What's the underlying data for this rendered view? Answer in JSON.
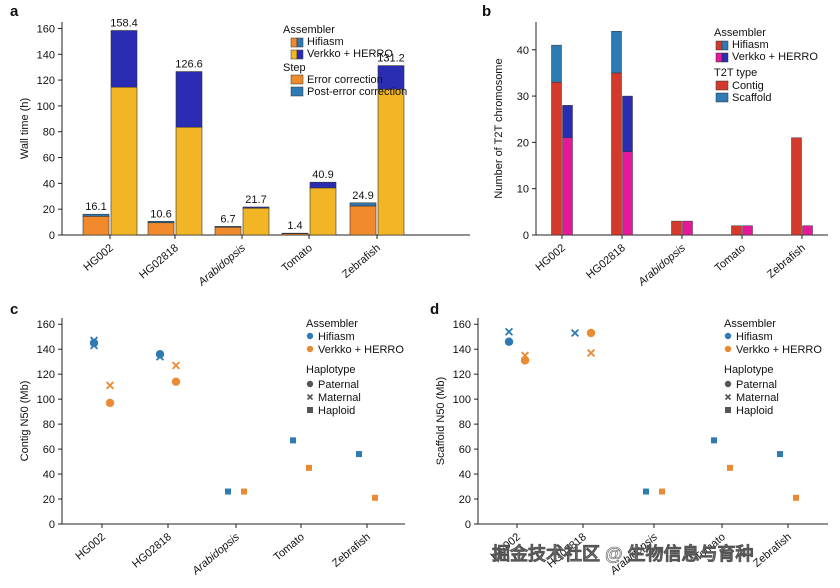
{
  "colors": {
    "hifiasm_orange": "#f08a2c",
    "verkko_yellow": "#f2b526",
    "post_blue": "#2e7bb4",
    "verkko_navy": "#2a2db3",
    "contig_red": "#d33a2c",
    "verkko_magenta": "#e5189a",
    "scatter_blue": "#2e7bb4",
    "scatter_orange": "#e98a35"
  },
  "chart_data": [
    {
      "panel": "a",
      "type": "bar",
      "categories": [
        "HG002",
        "HG02818",
        "Arabidopsis",
        "Tomato",
        "Zebrafish"
      ],
      "italic_categories": [
        "Arabidopsis"
      ],
      "ylabel": "Wall time (h)",
      "ylim": [
        0,
        165
      ],
      "yticks": [
        "0",
        "20",
        "40",
        "60",
        "80",
        "100",
        "120",
        "140",
        "160"
      ],
      "legend": {
        "title_assembler": "Assembler",
        "assembler": [
          "Hifiasm",
          "Verkko + HERRO"
        ],
        "title_step": "Step",
        "step": [
          "Error correction",
          "Post-error correction"
        ]
      },
      "series": [
        {
          "name": "Hifiasm",
          "error_correction": [
            14.5,
            9.5,
            6.0,
            1.0,
            22.5
          ],
          "post_error_correction": [
            1.6,
            1.1,
            0.7,
            0.4,
            2.4
          ],
          "totals": [
            "16.1",
            "10.6",
            "6.7",
            "1.4",
            "24.9"
          ]
        },
        {
          "name": "Verkko + HERRO",
          "error_correction": [
            114.5,
            83.5,
            20.8,
            36.5,
            113.0
          ],
          "post_error_correction": [
            43.9,
            43.1,
            0.9,
            4.4,
            18.2
          ],
          "totals": [
            "158.4",
            "126.6",
            "21.7",
            "40.9",
            "131.2"
          ]
        }
      ]
    },
    {
      "panel": "b",
      "type": "bar",
      "categories": [
        "HG002",
        "HG02818",
        "Arabidopsis",
        "Tomato",
        "Zebrafish"
      ],
      "italic_categories": [
        "Arabidopsis"
      ],
      "ylabel": "Number of T2T chromosome",
      "ylim": [
        0,
        46
      ],
      "yticks": [
        "0",
        "10",
        "20",
        "30",
        "40"
      ],
      "legend": {
        "title_assembler": "Assembler",
        "assembler": [
          "Hifiasm",
          "Verkko + HERRO"
        ],
        "title_type": "T2T type",
        "type": [
          "Contig",
          "Scaffold"
        ]
      },
      "series": [
        {
          "name": "Hifiasm",
          "contig": [
            33,
            35,
            3,
            2,
            21
          ],
          "scaffold": [
            8,
            9,
            0,
            0,
            0
          ]
        },
        {
          "name": "Verkko + HERRO",
          "contig": [
            21,
            18,
            3,
            2,
            2
          ],
          "scaffold": [
            7,
            12,
            0,
            0,
            0
          ]
        }
      ]
    },
    {
      "panel": "c",
      "type": "scatter",
      "categories": [
        "HG002",
        "HG02818",
        "Arabidopsis",
        "Tomato",
        "Zebrafish"
      ],
      "italic_categories": [
        "Arabidopsis"
      ],
      "ylabel": "Contig N50 (Mb)",
      "ylim": [
        0,
        165
      ],
      "yticks": [
        "0",
        "20",
        "40",
        "60",
        "80",
        "100",
        "120",
        "140",
        "160"
      ],
      "legend": {
        "title_assembler": "Assembler",
        "assembler": [
          "Hifiasm",
          "Verkko + HERRO"
        ],
        "title_haplotype": "Haplotype",
        "haplotype": [
          "Paternal",
          "Maternal",
          "Haploid"
        ]
      },
      "points": [
        {
          "cat": 0,
          "assembler": 0,
          "hap": "paternal",
          "y": 145
        },
        {
          "cat": 0,
          "assembler": 0,
          "hap": "maternal",
          "y": 147
        },
        {
          "cat": 0,
          "assembler": 0,
          "hap": "maternal",
          "y": 143
        },
        {
          "cat": 0,
          "assembler": 1,
          "hap": "maternal",
          "y": 111
        },
        {
          "cat": 0,
          "assembler": 1,
          "hap": "paternal",
          "y": 97
        },
        {
          "cat": 1,
          "assembler": 0,
          "hap": "paternal",
          "y": 136
        },
        {
          "cat": 1,
          "assembler": 0,
          "hap": "maternal",
          "y": 134
        },
        {
          "cat": 1,
          "assembler": 1,
          "hap": "maternal",
          "y": 127
        },
        {
          "cat": 1,
          "assembler": 1,
          "hap": "paternal",
          "y": 114
        },
        {
          "cat": 2,
          "assembler": 0,
          "hap": "haploid",
          "y": 26
        },
        {
          "cat": 2,
          "assembler": 1,
          "hap": "haploid",
          "y": 26
        },
        {
          "cat": 3,
          "assembler": 0,
          "hap": "haploid",
          "y": 67
        },
        {
          "cat": 3,
          "assembler": 1,
          "hap": "haploid",
          "y": 45
        },
        {
          "cat": 4,
          "assembler": 0,
          "hap": "haploid",
          "y": 56
        },
        {
          "cat": 4,
          "assembler": 1,
          "hap": "haploid",
          "y": 21
        }
      ]
    },
    {
      "panel": "d",
      "type": "scatter",
      "categories": [
        "HG002",
        "HG02818",
        "Arabidopsis",
        "Tomato",
        "Zebrafish"
      ],
      "italic_categories": [
        "Arabidopsis"
      ],
      "ylabel": "Scaffold N50 (Mb)",
      "ylim": [
        0,
        165
      ],
      "yticks": [
        "0",
        "20",
        "40",
        "60",
        "80",
        "100",
        "120",
        "140",
        "160"
      ],
      "legend": {
        "title_assembler": "Assembler",
        "assembler": [
          "Hifiasm",
          "Verkko + HERRO"
        ],
        "title_haplotype": "Haplotype",
        "haplotype": [
          "Paternal",
          "Maternal",
          "Haploid"
        ]
      },
      "points": [
        {
          "cat": 0,
          "assembler": 0,
          "hap": "maternal",
          "y": 154
        },
        {
          "cat": 0,
          "assembler": 0,
          "hap": "paternal",
          "y": 146
        },
        {
          "cat": 0,
          "assembler": 1,
          "hap": "maternal",
          "y": 135
        },
        {
          "cat": 0,
          "assembler": 1,
          "hap": "paternal",
          "y": 131
        },
        {
          "cat": 1,
          "assembler": 0,
          "hap": "maternal",
          "y": 153
        },
        {
          "cat": 1,
          "assembler": 1,
          "hap": "paternal",
          "y": 153
        },
        {
          "cat": 1,
          "assembler": 1,
          "hap": "maternal",
          "y": 137
        },
        {
          "cat": 2,
          "assembler": 0,
          "hap": "haploid",
          "y": 26
        },
        {
          "cat": 2,
          "assembler": 1,
          "hap": "haploid",
          "y": 26
        },
        {
          "cat": 3,
          "assembler": 0,
          "hap": "haploid",
          "y": 67
        },
        {
          "cat": 3,
          "assembler": 1,
          "hap": "haploid",
          "y": 45
        },
        {
          "cat": 4,
          "assembler": 0,
          "hap": "haploid",
          "y": 56
        },
        {
          "cat": 4,
          "assembler": 1,
          "hap": "haploid",
          "y": 21
        }
      ]
    }
  ],
  "panels": {
    "a": "a",
    "b": "b",
    "c": "c",
    "d": "d"
  },
  "watermark": "掘金技术社区 @ 生物信息与育种"
}
